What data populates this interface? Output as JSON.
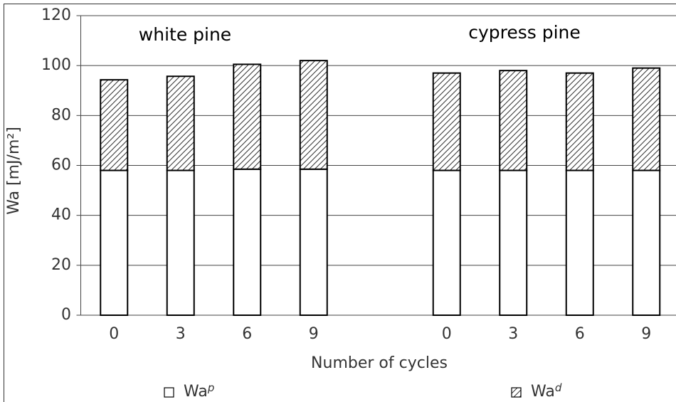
{
  "chart_data": {
    "type": "stacked_bar",
    "ylabel": "Wa  [mJ/m²]",
    "xlabel": "Number of cycles",
    "annotations": [
      "white pine",
      "cypress pine"
    ],
    "categories": [
      "0",
      "3",
      "6",
      "9",
      null,
      "0",
      "3",
      "6",
      "9"
    ],
    "series": [
      {
        "name": "Wa",
        "superscript": "p",
        "color": "#ffffff",
        "pattern": "solid",
        "values": [
          58,
          58,
          58.5,
          58.5,
          null,
          58,
          58,
          58,
          58
        ]
      },
      {
        "name": "Wa",
        "superscript": "d",
        "color": "#ffffff",
        "pattern": "hatch",
        "values": [
          36.3,
          37.7,
          42,
          43.5,
          null,
          39,
          40,
          39,
          41
        ]
      }
    ],
    "ylim": [
      0,
      120
    ],
    "yticks": [
      0,
      20,
      40,
      60,
      80,
      100,
      120
    ],
    "grid": true
  }
}
